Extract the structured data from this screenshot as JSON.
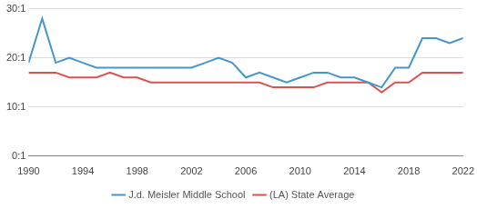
{
  "chart_data": {
    "type": "line",
    "x": [
      1990,
      1991,
      1992,
      1993,
      1994,
      1995,
      1996,
      1997,
      1998,
      1999,
      2000,
      2001,
      2002,
      2003,
      2004,
      2005,
      2006,
      2007,
      2008,
      2009,
      2010,
      2011,
      2012,
      2013,
      2014,
      2015,
      2016,
      2017,
      2018,
      2019,
      2020,
      2021,
      2022
    ],
    "series": [
      {
        "name": "J.d. Meisler Middle School",
        "color": "#4497cc",
        "values": [
          19,
          28,
          19,
          20,
          19,
          18,
          18,
          18,
          18,
          18,
          18,
          18,
          18,
          19,
          20,
          19,
          16,
          17,
          16,
          15,
          16,
          17,
          17,
          16,
          16,
          15,
          14,
          18,
          18,
          24,
          24,
          23,
          24
        ]
      },
      {
        "name": "(LA) State Average",
        "color": "#d9534f",
        "values": [
          17,
          17,
          17,
          16,
          16,
          16,
          17,
          16,
          16,
          15,
          15,
          15,
          15,
          15,
          15,
          15,
          15,
          15,
          14,
          14,
          14,
          14,
          15,
          15,
          15,
          15,
          13,
          15,
          15,
          17,
          17,
          17,
          17
        ]
      }
    ],
    "xlim": [
      1990,
      2022
    ],
    "xticks": [
      1990,
      1994,
      1998,
      2002,
      2006,
      2010,
      2014,
      2018,
      2022
    ],
    "ylim": [
      0,
      30
    ],
    "yticks": [
      {
        "value": 0,
        "label": "0:1"
      },
      {
        "value": 10,
        "label": "10:1"
      },
      {
        "value": 20,
        "label": "20:1"
      },
      {
        "value": 30,
        "label": "30:1"
      }
    ],
    "grid": true,
    "legend": "bottom"
  }
}
